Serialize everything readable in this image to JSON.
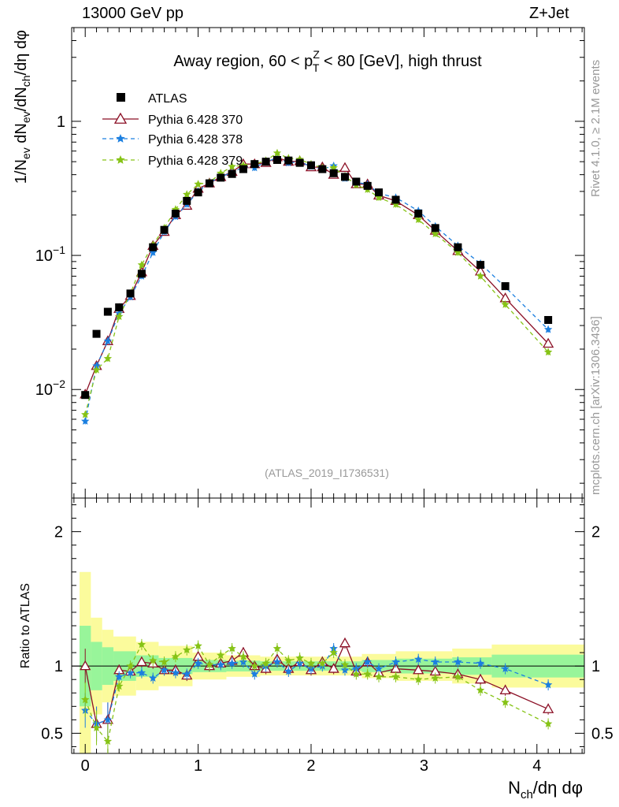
{
  "header": {
    "left": "13000 GeV pp",
    "right": "Z+Jet"
  },
  "side_labels": {
    "rivet": "Rivet 4.1.0, ≥ 2.1M events",
    "mcplots": "mcplots.cern.ch [arXiv:1306.3436]"
  },
  "colors": {
    "atlas": "#000000",
    "p370": "#8b0f25",
    "p378": "#1b7fe0",
    "p379": "#86c316",
    "band_inner": "#98f59a",
    "band_outer": "#fbfb9c"
  },
  "chart_data": [
    {
      "type": "scatter",
      "scale": "log",
      "title": "Away region, 60 < p_T^Z < 80 [GeV], high thrust",
      "title_parts": {
        "pre": "Away region, 60 < p",
        "sub": "T",
        "sup": "Z",
        "post": " < 80 [GeV], high thrust"
      },
      "watermark": "(ATLAS_2019_I1736531)",
      "ylabel": "1/N_ev dN_ev/dN_ch/dη dφ",
      "ylabel_parts": {
        "a": "1/N",
        "a_sub": "ev",
        "b": " dN",
        "b_sub": "ev",
        "c": "/dN",
        "c_sub": "ch",
        "d": "/dη dφ"
      },
      "xlim": [
        -0.12,
        4.42
      ],
      "ylim": [
        0.00155,
        5.0
      ],
      "y_tick_labels": [
        {
          "value": 0.01,
          "base": "10",
          "exp": "−2"
        },
        {
          "value": 0.1,
          "base": "10",
          "exp": "−1"
        },
        {
          "value": 1,
          "base": "1",
          "exp": ""
        }
      ],
      "legend": [
        "ATLAS",
        "Pythia 6.428 370",
        "Pythia 6.428 378",
        "Pythia 6.428 379"
      ],
      "x": [
        0.0,
        0.1,
        0.2,
        0.3,
        0.4,
        0.5,
        0.6,
        0.7,
        0.8,
        0.9,
        1.0,
        1.1,
        1.2,
        1.3,
        1.4,
        1.5,
        1.6,
        1.7,
        1.8,
        1.9,
        2.0,
        2.1,
        2.2,
        2.3,
        2.4,
        2.5,
        2.6,
        2.75,
        2.95,
        3.1,
        3.3,
        3.5,
        3.72,
        4.1
      ],
      "series": [
        {
          "name": "ATLAS",
          "values": [
            0.0091,
            0.026,
            0.038,
            0.041,
            0.052,
            0.073,
            0.115,
            0.155,
            0.205,
            0.255,
            0.295,
            0.345,
            0.38,
            0.405,
            0.44,
            0.48,
            0.5,
            0.515,
            0.51,
            0.49,
            0.47,
            0.44,
            0.41,
            0.385,
            0.355,
            0.33,
            0.295,
            0.26,
            0.205,
            0.16,
            0.115,
            0.085,
            0.059,
            0.033
          ]
        },
        {
          "name": "Pythia 6.428 370",
          "values": [
            0.0092,
            0.015,
            0.023,
            0.04,
            0.05,
            0.075,
            0.118,
            0.15,
            0.2,
            0.235,
            0.315,
            0.345,
            0.385,
            0.42,
            0.48,
            0.48,
            0.49,
            0.54,
            0.5,
            0.505,
            0.455,
            0.455,
            0.4,
            0.45,
            0.34,
            0.34,
            0.28,
            0.255,
            0.2,
            0.153,
            0.108,
            0.076,
            0.048,
            0.022
          ]
        },
        {
          "name": "Pythia 6.428 378",
          "values": [
            0.0058,
            0.015,
            0.023,
            0.037,
            0.049,
            0.07,
            0.105,
            0.15,
            0.195,
            0.24,
            0.3,
            0.35,
            0.385,
            0.415,
            0.455,
            0.45,
            0.5,
            0.53,
            0.49,
            0.5,
            0.46,
            0.44,
            0.465,
            0.375,
            0.35,
            0.34,
            0.29,
            0.27,
            0.215,
            0.165,
            0.118,
            0.087,
            0.058,
            0.028
          ]
        },
        {
          "name": "Pythia 6.428 379",
          "values": [
            0.0065,
            0.014,
            0.017,
            0.035,
            0.052,
            0.085,
            0.12,
            0.16,
            0.22,
            0.285,
            0.34,
            0.35,
            0.41,
            0.46,
            0.47,
            0.48,
            0.51,
            0.58,
            0.53,
            0.52,
            0.48,
            0.45,
            0.45,
            0.39,
            0.335,
            0.31,
            0.27,
            0.24,
            0.185,
            0.145,
            0.105,
            0.07,
            0.043,
            0.019
          ]
        }
      ]
    },
    {
      "type": "scatter",
      "scale": "linear",
      "ylabel": "Ratio to ATLAS",
      "xlabel": "N_ch/dη dφ",
      "xlabel_parts": {
        "a": "N",
        "a_sub": "ch",
        "b": "/dη dφ"
      },
      "xlim": [
        -0.12,
        4.42
      ],
      "ylim": [
        0.35,
        2.25
      ],
      "x_ticks": [
        0,
        1,
        2,
        3,
        4
      ],
      "y_tick_values": [
        0.5,
        1,
        2
      ],
      "y_tick_labels": [
        "0.5",
        "1",
        "2"
      ],
      "x": [
        0.0,
        0.1,
        0.2,
        0.3,
        0.4,
        0.5,
        0.6,
        0.7,
        0.8,
        0.9,
        1.0,
        1.1,
        1.2,
        1.3,
        1.4,
        1.5,
        1.6,
        1.7,
        1.8,
        1.9,
        2.0,
        2.1,
        2.2,
        2.3,
        2.4,
        2.5,
        2.6,
        2.75,
        2.95,
        3.1,
        3.3,
        3.5,
        3.72,
        4.1
      ],
      "bands": {
        "edges": [
          -0.05,
          0.05,
          0.15,
          0.25,
          0.45,
          0.65,
          0.95,
          1.25,
          1.55,
          2.0,
          2.45,
          2.75,
          3.25,
          3.6,
          4.42
        ],
        "inner": [
          0.3,
          0.18,
          0.14,
          0.11,
          0.08,
          0.06,
          0.045,
          0.04,
          0.035,
          0.035,
          0.045,
          0.055,
          0.065,
          0.085
        ],
        "outer": [
          0.7,
          0.36,
          0.27,
          0.22,
          0.18,
          0.15,
          0.1,
          0.08,
          0.07,
          0.07,
          0.09,
          0.11,
          0.13,
          0.16
        ]
      },
      "series": [
        {
          "name": "Pythia 6.428 370",
          "values": [
            1.0,
            0.57,
            0.6,
            0.97,
            0.96,
            1.03,
            1.02,
            0.97,
            0.97,
            0.93,
            1.07,
            1.0,
            1.02,
            1.04,
            1.1,
            1.0,
            0.98,
            1.05,
            0.98,
            1.03,
            0.97,
            1.03,
            0.98,
            1.17,
            0.96,
            1.03,
            0.95,
            0.98,
            0.97,
            0.96,
            0.94,
            0.9,
            0.82,
            0.68
          ]
        },
        {
          "name": "Pythia 6.428 378",
          "values": [
            0.67,
            0.57,
            0.6,
            0.92,
            0.95,
            0.95,
            0.91,
            0.97,
            0.95,
            0.94,
            1.02,
            1.01,
            1.01,
            1.02,
            1.03,
            0.94,
            1.0,
            1.03,
            0.96,
            1.02,
            0.98,
            1.0,
            1.13,
            0.97,
            0.98,
            1.03,
            0.98,
            1.03,
            1.05,
            1.03,
            1.03,
            1.02,
            0.98,
            0.86
          ]
        },
        {
          "name": "Pythia 6.428 379",
          "values": [
            0.75,
            0.54,
            0.44,
            0.85,
            1.0,
            1.16,
            1.04,
            1.03,
            1.07,
            1.12,
            1.15,
            1.01,
            1.08,
            1.13,
            1.07,
            1.0,
            1.02,
            1.13,
            1.04,
            1.06,
            1.02,
            1.02,
            1.1,
            1.01,
            0.94,
            0.94,
            0.92,
            0.92,
            0.9,
            0.91,
            0.92,
            0.82,
            0.73,
            0.57
          ]
        }
      ]
    }
  ]
}
